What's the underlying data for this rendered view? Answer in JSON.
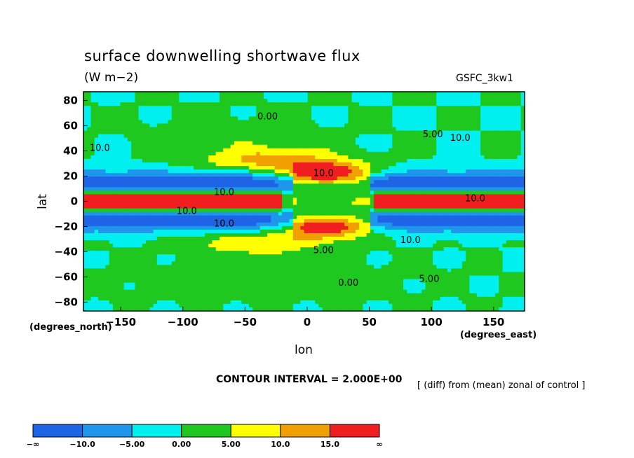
{
  "header": {
    "title": "surface downwelling shortwave flux",
    "units": "(W m−2)",
    "model": "GSFC_3kw1"
  },
  "axes": {
    "xlabel": "lon",
    "ylabel": "lat",
    "x_unit_note": "(degrees_east)",
    "y_unit_note": "(degrees_north)"
  },
  "footer": {
    "contour_interval": "CONTOUR INTERVAL = 2.000E+00",
    "note": "[ (diff) from (mean) zonal of control ]"
  },
  "chart_data": {
    "type": "heatmap",
    "title": "surface downwelling shortwave flux",
    "subtitle": "(W m−2)",
    "xlabel": "lon",
    "ylabel": "lat",
    "xlim": [
      -180,
      175
    ],
    "ylim": [
      -87,
      87
    ],
    "x_ticks": [
      -150,
      -100,
      -50,
      0,
      50,
      100,
      150
    ],
    "y_ticks": [
      80,
      60,
      40,
      20,
      0,
      -20,
      -40,
      -60,
      -80
    ],
    "contour_interval": 2.0,
    "contour_labels": [
      {
        "text": "0.00",
        "lon": -40,
        "lat": 65
      },
      {
        "text": "10.0",
        "lon": 5,
        "lat": 20
      },
      {
        "text": "10.0",
        "lon": -175,
        "lat": 40
      },
      {
        "text": "5.00",
        "lon": 93,
        "lat": 51
      },
      {
        "text": "10.0",
        "lon": 115,
        "lat": 48
      },
      {
        "text": "10.0",
        "lon": 127,
        "lat": 0
      },
      {
        "text": "10.0",
        "lon": -75,
        "lat": 5
      },
      {
        "text": "10.0",
        "lon": -105,
        "lat": -10
      },
      {
        "text": "10.0",
        "lon": -75,
        "lat": -20
      },
      {
        "text": "10.0",
        "lon": 75,
        "lat": -33
      },
      {
        "text": "5.00",
        "lon": 90,
        "lat": -64
      },
      {
        "text": "0.00",
        "lon": 25,
        "lat": -67
      },
      {
        "text": "5.00",
        "lon": 5,
        "lat": -41
      }
    ],
    "colorbar": {
      "levels": [
        "−∞",
        "−10.0",
        "−5.00",
        "0.00",
        "5.00",
        "10.0",
        "15.0",
        "∞"
      ],
      "colors": [
        "#1e64e6",
        "#1e96ec",
        "#00f0f0",
        "#1ec81e",
        "#ffff00",
        "#f0a000",
        "#f01e1e"
      ]
    }
  }
}
